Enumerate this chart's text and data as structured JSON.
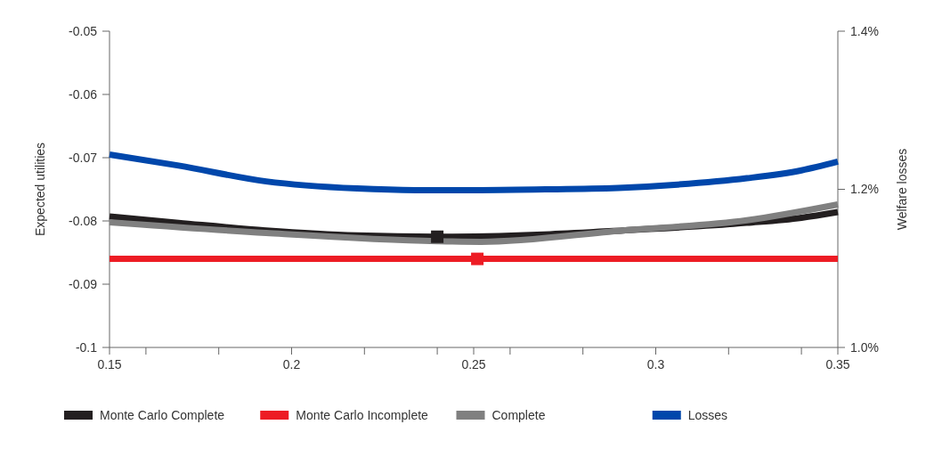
{
  "chart_data": {
    "type": "line",
    "ylabel": "Expected utilities",
    "y2label": "Welfare losses",
    "xlim": [
      0.15,
      0.35
    ],
    "xticks": [
      0.15,
      {
        "value": 0.16,
        "label": null
      },
      {
        "value": 0.18,
        "label": null
      },
      0.2,
      {
        "value": 0.22,
        "label": null
      },
      {
        "value": 0.24,
        "label": null
      },
      0.25,
      {
        "value": 0.26,
        "label": null
      },
      {
        "value": 0.28,
        "label": null
      },
      0.3,
      {
        "value": 0.32,
        "label": null
      },
      {
        "value": 0.34,
        "label": null
      },
      0.35
    ],
    "ylim": [
      -0.1,
      -0.05
    ],
    "yticks": [
      -0.1,
      -0.09,
      -0.08,
      -0.07,
      -0.06,
      -0.05
    ],
    "y2lim": [
      1.0,
      1.4
    ],
    "y2ticks": [
      {
        "value": 1.0,
        "label": "1.0%"
      },
      {
        "value": 1.2,
        "label": "1.2%"
      },
      {
        "value": 1.4,
        "label": "1.4%"
      }
    ],
    "grid": false,
    "legend": "bottom",
    "line_style": "solid",
    "series": [
      {
        "name": "Monte Carlo Complete",
        "color": "#231f20",
        "x": [
          0.15,
          0.169,
          0.193,
          0.218,
          0.24,
          0.271,
          0.291,
          0.325,
          0.34,
          0.35
        ],
        "values": [
          -0.0793,
          -0.0803,
          -0.0815,
          -0.0823,
          -0.0825,
          -0.0821,
          -0.0815,
          -0.0803,
          -0.0795,
          -0.0786
        ]
      },
      {
        "name": "Monte Carlo Incomplete",
        "color": "#ed1c24",
        "x": [
          0.15,
          0.35
        ],
        "values": [
          -0.086,
          -0.086
        ]
      },
      {
        "name": "Complete",
        "color": "#808080",
        "x": [
          0.15,
          0.193,
          0.24,
          0.252,
          0.291,
          0.325,
          0.35
        ],
        "values": [
          -0.0802,
          -0.0819,
          -0.0832,
          -0.0833,
          -0.0815,
          -0.0799,
          -0.0774
        ]
      },
      {
        "name": "Losses",
        "color": "#0047ab",
        "axis": "y2",
        "x": [
          0.15,
          0.169,
          0.193,
          0.218,
          0.234,
          0.252,
          0.271,
          0.291,
          0.306,
          0.325,
          0.34,
          0.35
        ],
        "values": [
          1.244,
          1.23,
          1.21,
          1.201,
          1.199,
          1.199,
          1.2,
          1.202,
          1.206,
          1.214,
          1.224,
          1.235
        ]
      },
      {
        "type": "scatter",
        "marker": "square",
        "color": "#231f20",
        "x": [
          0.24
        ],
        "values": [
          -0.0825
        ]
      },
      {
        "type": "scatter",
        "marker": "square",
        "color": "#ed1c24",
        "x": [
          0.251
        ],
        "values": [
          -0.086
        ]
      }
    ]
  }
}
